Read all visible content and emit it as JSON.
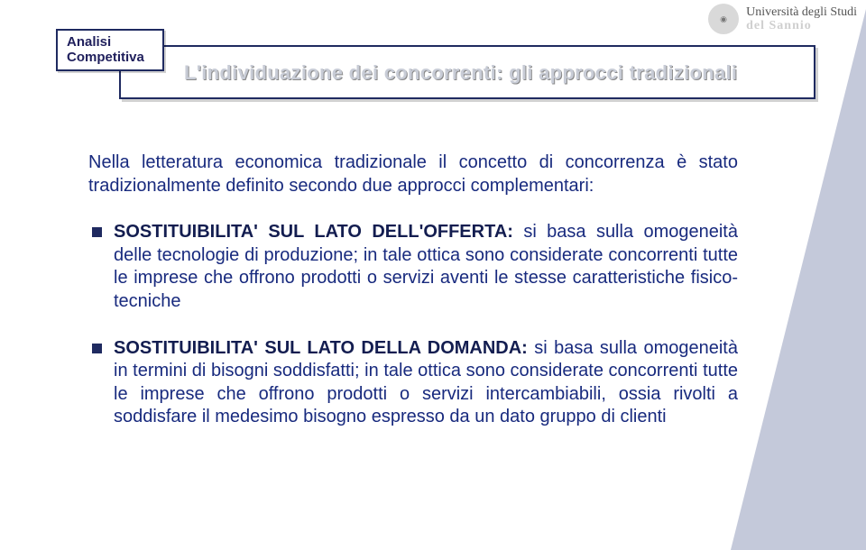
{
  "colors": {
    "accent_border": "#1f2a60",
    "wedge": "#c4c9da",
    "intro_text": "#182a7e",
    "tag_text": "#1f1f5c",
    "title_text": "#c8ccd6"
  },
  "logo": {
    "line1": "Università degli Studi",
    "line2": "del Sannio"
  },
  "tag": {
    "line1": "Analisi",
    "line2": "Competitiva"
  },
  "title": "L'individuazione dei concorrenti: gli approcci tradizionali",
  "intro": "Nella letteratura economica tradizionale il concetto di concorrenza è stato tradizionalmente definito secondo due approcci complementari:",
  "bullets": [
    {
      "lead": "SOSTITUIBILITA' SUL LATO DELL'OFFERTA:",
      "rest": " si basa sulla omogeneità delle tecnologie di produzione; in tale ottica sono considerate concorrenti tutte le imprese che offrono prodotti o servizi aventi le stesse caratteristiche fisico-tecniche"
    },
    {
      "lead": "SOSTITUIBILITA' SUL LATO DELLA DOMANDA:",
      "rest": " si basa sulla omogeneità in termini di bisogni soddisfatti; in tale ottica sono considerate concorrenti tutte le imprese che offrono prodotti o servizi intercambiabili, ossia rivolti a soddisfare il medesimo bisogno espresso da un dato gruppo di clienti"
    }
  ]
}
